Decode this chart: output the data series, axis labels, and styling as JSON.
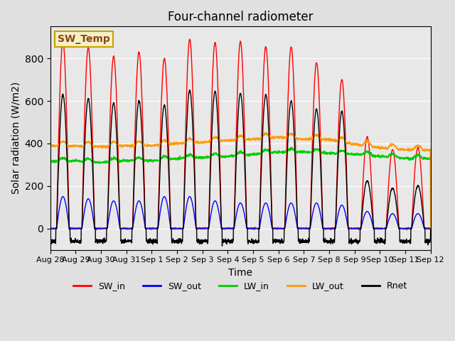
{
  "title": "Four-channel radiometer",
  "xlabel": "Time",
  "ylabel": "Solar radiation (W/m2)",
  "ylim": [
    -100,
    950
  ],
  "background_color": "#e8e8e8",
  "axes_bg_color": "#e8e8e8",
  "annotation_text": "SW_Temp",
  "annotation_color": "#8B4513",
  "annotation_bg": "#f5f0c8",
  "annotation_border": "#c8a000",
  "legend_entries": [
    "SW_in",
    "SW_out",
    "LW_in",
    "LW_out",
    "Rnet"
  ],
  "line_colors": [
    "#ff0000",
    "#0000ff",
    "#00cc00",
    "#ff9900",
    "#000000"
  ],
  "x_tick_labels": [
    "Aug 28",
    "Aug 29",
    "Aug 30",
    "Aug 31",
    "Sep 1",
    "Sep 2",
    "Sep 3",
    "Sep 4",
    "Sep 5",
    "Sep 6",
    "Sep 7",
    "Sep 8",
    "Sep 9",
    "Sep 10",
    "Sep 11",
    "Sep 12"
  ],
  "n_days": 15,
  "points_per_day": 144,
  "SW_in_peaks": [
    880,
    850,
    810,
    830,
    800,
    890,
    875,
    880,
    855,
    855,
    780,
    700,
    430,
    370,
    380
  ],
  "SW_out_peaks": [
    150,
    140,
    130,
    130,
    150,
    150,
    130,
    120,
    120,
    120,
    120,
    110,
    80,
    70,
    70
  ],
  "LW_in_base": [
    315,
    318,
    310,
    320,
    318,
    330,
    335,
    340,
    348,
    360,
    360,
    355,
    350,
    340,
    330
  ],
  "LW_out_base": [
    390,
    388,
    385,
    390,
    390,
    400,
    405,
    415,
    420,
    430,
    420,
    420,
    395,
    380,
    370
  ],
  "Rnet_peaks": [
    630,
    610,
    590,
    600,
    580,
    650,
    645,
    635,
    630,
    600,
    560,
    550,
    225,
    190,
    200
  ]
}
